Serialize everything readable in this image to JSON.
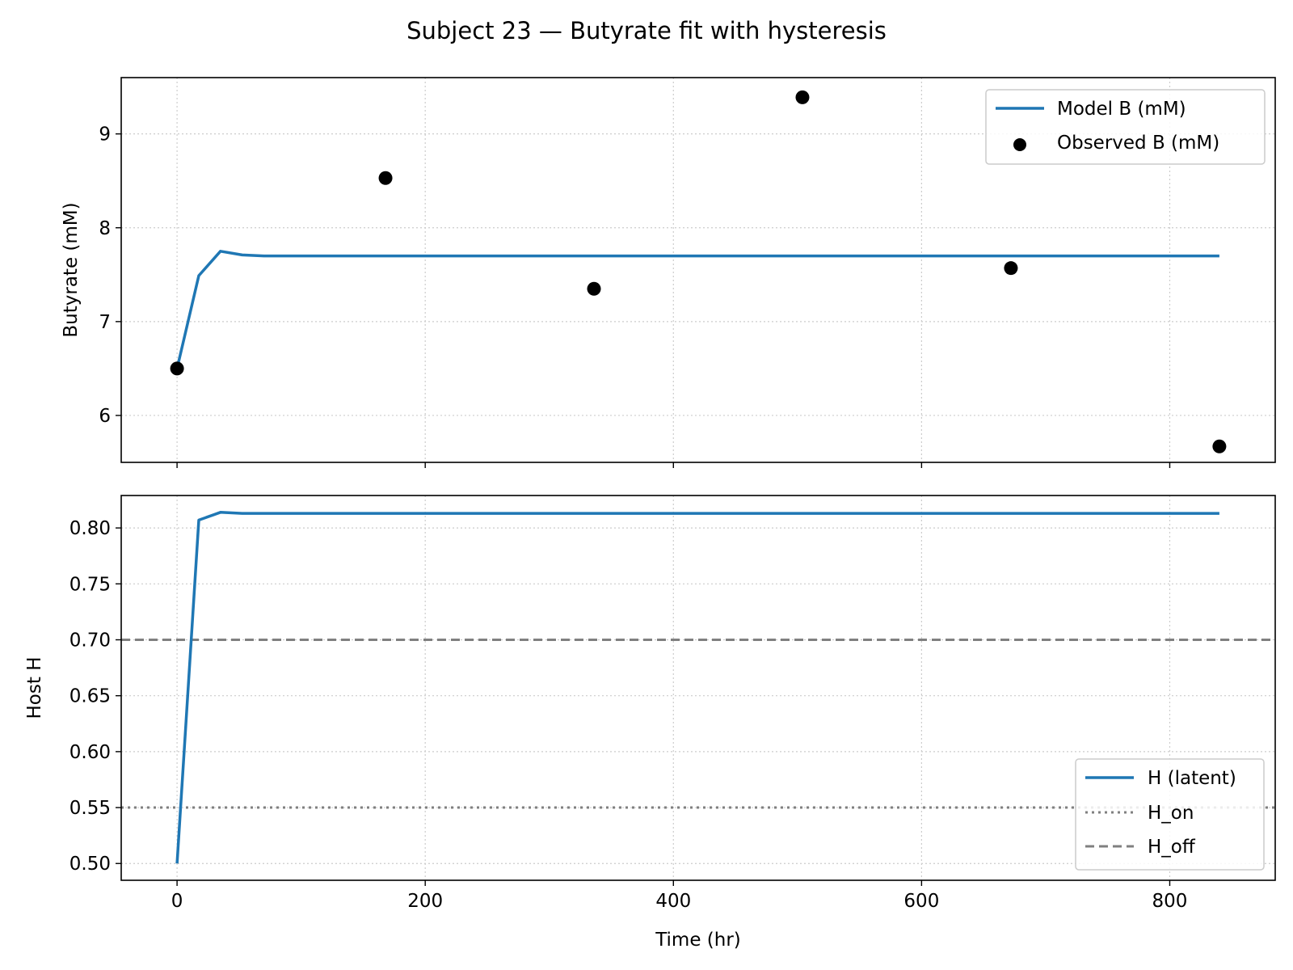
{
  "figure": {
    "title": "Subject 23 — Butyrate fit with hysteresis"
  },
  "colors": {
    "model": "#1f77b4",
    "observed": "#000000",
    "threshold": "#808080",
    "grid": "#cccccc"
  },
  "chart_data": [
    {
      "type": "line",
      "title": "",
      "xlabel": "",
      "ylabel": "Butyrate (mM)",
      "xlim": [
        -45,
        885
      ],
      "ylim": [
        5.5,
        9.6
      ],
      "xticks": [
        0,
        200,
        400,
        600,
        800
      ],
      "xtick_labels": [
        "",
        "",
        "",
        "",
        ""
      ],
      "yticks": [
        6,
        7,
        8,
        9
      ],
      "ytick_labels": [
        "6",
        "7",
        "8",
        "9"
      ],
      "grid": true,
      "legend": {
        "position": "upper right",
        "entries": [
          {
            "label": "Model B (mM)",
            "kind": "line"
          },
          {
            "label": "Observed B (mM)",
            "kind": "scatter"
          }
        ]
      },
      "series": [
        {
          "name": "Model B (mM)",
          "kind": "line",
          "x": [
            0,
            17.5,
            35,
            52.5,
            70,
            105,
            140,
            840
          ],
          "y": [
            6.5,
            7.49,
            7.75,
            7.71,
            7.7,
            7.7,
            7.7,
            7.7
          ]
        },
        {
          "name": "Observed B (mM)",
          "kind": "scatter",
          "x": [
            0,
            168,
            336,
            504,
            672,
            840
          ],
          "y": [
            6.5,
            8.53,
            7.35,
            9.39,
            7.57,
            5.67
          ]
        }
      ]
    },
    {
      "type": "line",
      "title": "",
      "xlabel": "Time (hr)",
      "ylabel": "Host H",
      "xlim": [
        -45,
        885
      ],
      "ylim": [
        0.485,
        0.829
      ],
      "xticks": [
        0,
        200,
        400,
        600,
        800
      ],
      "xtick_labels": [
        "0",
        "200",
        "400",
        "600",
        "800"
      ],
      "yticks": [
        0.5,
        0.55,
        0.6,
        0.65,
        0.7,
        0.75,
        0.8
      ],
      "ytick_labels": [
        "0.50",
        "0.55",
        "0.60",
        "0.65",
        "0.70",
        "0.75",
        "0.80"
      ],
      "grid": true,
      "legend": {
        "position": "lower right",
        "entries": [
          {
            "label": "H (latent)",
            "kind": "line"
          },
          {
            "label": "H_on",
            "kind": "dotted"
          },
          {
            "label": "H_off",
            "kind": "dashed"
          }
        ]
      },
      "series": [
        {
          "name": "H (latent)",
          "kind": "line",
          "x": [
            0,
            17.5,
            35,
            52.5,
            70,
            840
          ],
          "y": [
            0.5,
            0.807,
            0.814,
            0.813,
            0.813,
            0.813
          ]
        }
      ],
      "hlines": [
        {
          "name": "H_on",
          "y": 0.55,
          "style": "dotted"
        },
        {
          "name": "H_off",
          "y": 0.7,
          "style": "dashed"
        }
      ]
    }
  ]
}
